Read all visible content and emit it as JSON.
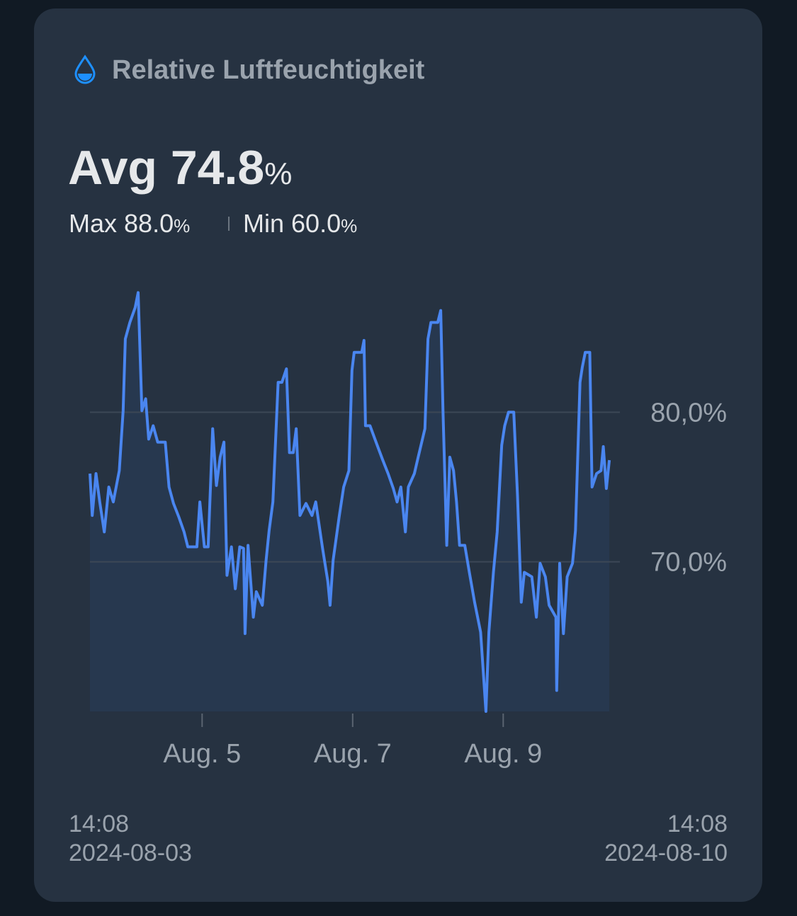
{
  "header": {
    "title": "Relative Luftfeuchtigkeit",
    "avg_label": "Avg",
    "avg": "74.8",
    "avg_unit": "%",
    "max_label": "Max",
    "max": "88.0",
    "max_unit": "%",
    "min_label": "Min",
    "min": "60.0",
    "min_unit": "%"
  },
  "chart_data": {
    "type": "line",
    "color": "#4a86f0",
    "xlim": [
      3.51,
      10.55
    ],
    "xticks": [
      {
        "value": 5,
        "label": "Aug. 5"
      },
      {
        "value": 7,
        "label": "Aug. 7"
      },
      {
        "value": 9,
        "label": "Aug. 9"
      }
    ],
    "ylim": [
      60,
      90
    ],
    "yticks": [
      {
        "value": 70,
        "label": "70,0%"
      },
      {
        "value": 80,
        "label": "80,0%"
      }
    ],
    "grid": true,
    "x": [
      3.51,
      3.54,
      3.59,
      3.64,
      3.7,
      3.76,
      3.82,
      3.9,
      3.95,
      3.98,
      4.04,
      4.11,
      4.15,
      4.2,
      4.25,
      4.29,
      4.35,
      4.41,
      4.51,
      4.56,
      4.62,
      4.69,
      4.76,
      4.81,
      4.93,
      4.97,
      5.03,
      5.08,
      5.11,
      5.14,
      5.19,
      5.24,
      5.29,
      5.33,
      5.39,
      5.44,
      5.5,
      5.55,
      5.57,
      5.61,
      5.68,
      5.72,
      5.8,
      5.85,
      5.89,
      5.94,
      6.01,
      6.06,
      6.12,
      6.16,
      6.21,
      6.25,
      6.3,
      6.38,
      6.46,
      6.51,
      6.6,
      6.67,
      6.7,
      6.74,
      6.82,
      6.88,
      6.95,
      6.99,
      7.02,
      7.12,
      7.15,
      7.17,
      7.23,
      7.31,
      7.4,
      7.47,
      7.54,
      7.59,
      7.64,
      7.7,
      7.74,
      7.82,
      7.87,
      7.96,
      8.0,
      8.04,
      8.13,
      8.17,
      8.2,
      8.25,
      8.29,
      8.34,
      8.38,
      8.42,
      8.49,
      8.55,
      8.62,
      8.7,
      8.77,
      8.81,
      8.87,
      8.92,
      8.98,
      9.02,
      9.07,
      9.14,
      9.19,
      9.24,
      9.28,
      9.38,
      9.44,
      9.49,
      9.56,
      9.61,
      9.7,
      9.71,
      9.75,
      9.8,
      9.85,
      9.92,
      9.96,
      10.02,
      10.05,
      10.09,
      10.15,
      10.18,
      10.24,
      10.3,
      10.33,
      10.37,
      10.41
    ],
    "values": [
      75.9,
      73.1,
      75.9,
      74.0,
      72.0,
      75.0,
      74.0,
      76.1,
      80.1,
      84.9,
      86.0,
      87.0,
      88.0,
      80.1,
      80.9,
      78.2,
      79.1,
      78.0,
      78.0,
      75.0,
      73.9,
      73.0,
      72.0,
      71.0,
      71.0,
      74.0,
      71.0,
      71.0,
      74.9,
      78.9,
      75.1,
      77.0,
      78.0,
      69.1,
      71.0,
      68.2,
      71.0,
      70.9,
      65.2,
      71.1,
      66.3,
      68.0,
      67.1,
      70.1,
      72.1,
      74.0,
      82.0,
      82.0,
      82.9,
      77.3,
      77.3,
      78.9,
      73.1,
      73.9,
      73.1,
      74.0,
      70.9,
      68.7,
      67.1,
      70.1,
      73.0,
      75.0,
      76.1,
      82.8,
      84.0,
      84.0,
      84.8,
      79.1,
      79.1,
      78.0,
      76.8,
      75.9,
      74.9,
      74.0,
      75.0,
      72.0,
      75.0,
      75.9,
      77.0,
      78.9,
      84.9,
      86.0,
      86.0,
      86.8,
      80.1,
      71.1,
      77.0,
      76.1,
      74.0,
      71.1,
      71.1,
      69.3,
      67.3,
      65.3,
      60.0,
      65.3,
      69.3,
      72.0,
      77.8,
      79.1,
      80.0,
      80.0,
      74.4,
      67.3,
      69.3,
      69.0,
      66.3,
      69.9,
      69.0,
      67.1,
      66.3,
      61.4,
      69.9,
      65.2,
      69.0,
      69.9,
      72.1,
      82.0,
      83.0,
      84.0,
      84.0,
      75.0,
      75.9,
      76.1,
      77.7,
      74.9,
      76.8
    ]
  },
  "footer": {
    "start_time": "14:08",
    "start_date": "2024-08-03",
    "end_time": "14:08",
    "end_date": "2024-08-10"
  }
}
